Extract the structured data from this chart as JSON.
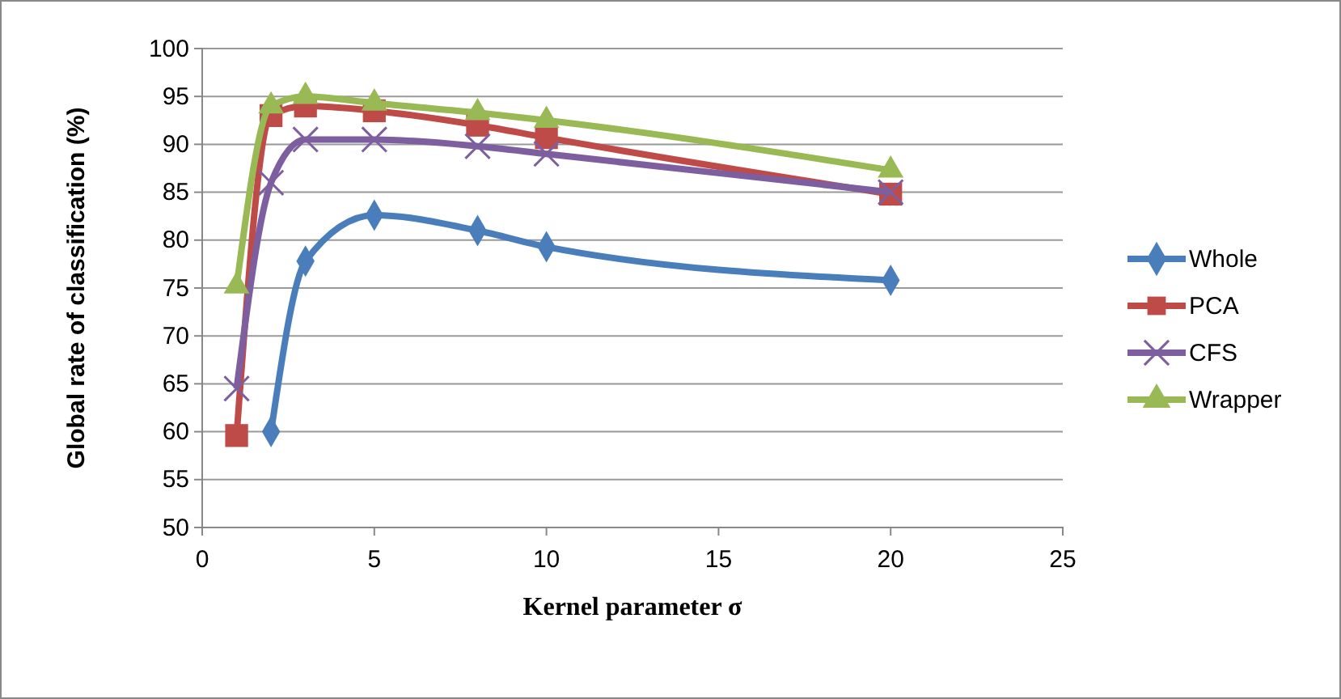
{
  "chart_data": {
    "type": "line",
    "xlabel": "Kernel parameter σ",
    "ylabel": "Global rate of classification (%)",
    "xlim": [
      0,
      25
    ],
    "xticks": [
      0,
      5,
      10,
      15,
      20,
      25
    ],
    "ylim": [
      50,
      100
    ],
    "yticks": [
      50,
      55,
      60,
      65,
      70,
      75,
      80,
      85,
      90,
      95,
      100
    ],
    "grid": "y",
    "legend": "right",
    "series": [
      {
        "name": "Whole",
        "color": "#4a7ebb",
        "marker": "diamond",
        "x": [
          2,
          3,
          5,
          8,
          10,
          20
        ],
        "values": [
          60,
          77.8,
          82.6,
          81,
          79.3,
          75.8
        ]
      },
      {
        "name": "PCA",
        "color": "#be4b48",
        "marker": "square",
        "x": [
          1,
          2,
          3,
          5,
          8,
          10,
          20
        ],
        "values": [
          59.6,
          93,
          94,
          93.5,
          92,
          90.7,
          84.8
        ]
      },
      {
        "name": "CFS",
        "color": "#7d5fa0",
        "marker": "cross",
        "x": [
          1,
          2,
          3,
          5,
          8,
          10,
          20
        ],
        "values": [
          64.5,
          86,
          90.5,
          90.5,
          89.8,
          89,
          85
        ]
      },
      {
        "name": "Wrapper",
        "color": "#98b954",
        "marker": "triangle",
        "x": [
          1,
          2,
          3,
          5,
          8,
          10,
          20
        ],
        "values": [
          75.2,
          94,
          95,
          94.3,
          93.3,
          92.5,
          87.3
        ]
      }
    ]
  }
}
